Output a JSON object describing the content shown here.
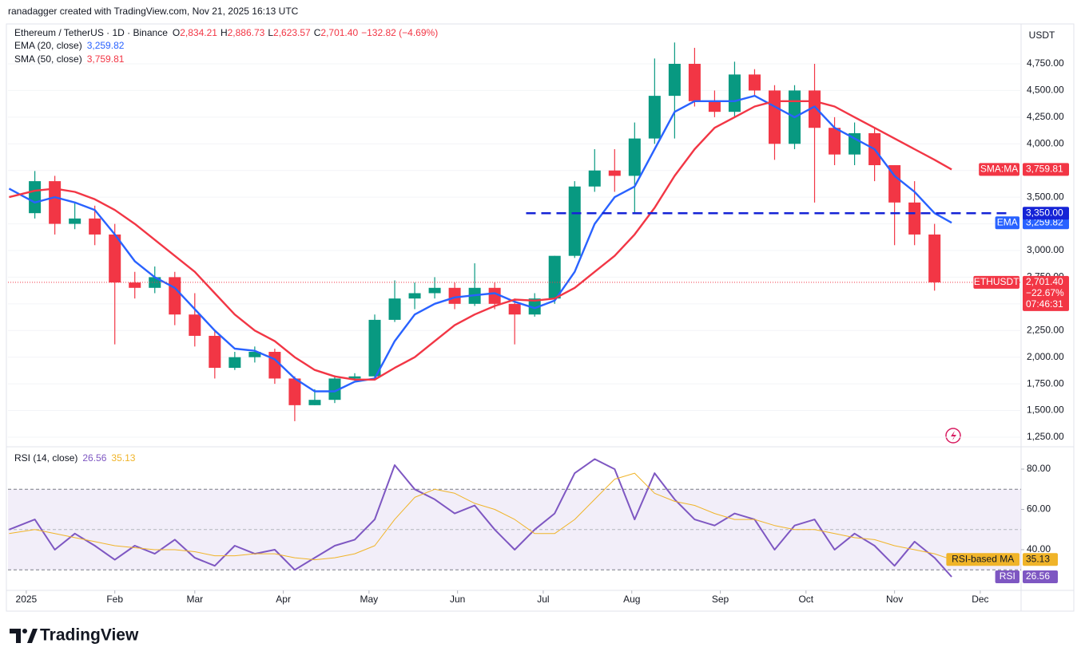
{
  "header": {
    "attribution": "ranadagger created with TradingView.com, Nov 21, 2025 16:13 UTC",
    "currency": "USDT"
  },
  "chart_data": [
    {
      "type": "candlestick",
      "title": "Ethereum / TetherUS · 1D · Binance",
      "ohlc_legend": [
        {
          "key": "O",
          "value": "2,834.21"
        },
        {
          "key": "H",
          "value": "2,886.73"
        },
        {
          "key": "L",
          "value": "2,623.57"
        },
        {
          "key": "C",
          "value": "2,701.40"
        }
      ],
      "change": "−132.82 (−4.69%)",
      "symbol": "ETHUSDT",
      "last_price": 2701.4,
      "last_price_label": "2,701.40",
      "last_change": "−22.67%",
      "countdown": "07:46:31",
      "up_color": "#089981",
      "down_color": "#f23645",
      "candles": {
        "x": [
          3,
          10,
          17,
          24,
          31,
          38,
          45,
          52,
          59,
          66,
          73,
          80,
          87,
          94,
          101,
          108,
          115,
          122,
          129,
          136,
          143,
          150,
          157,
          164,
          171,
          178,
          185,
          192,
          199,
          206,
          213,
          220,
          227,
          234,
          241,
          248,
          255,
          262,
          269,
          276,
          283,
          290,
          297,
          304,
          311,
          318
        ],
        "open": [
          3350,
          3650,
          3250,
          3300,
          3150,
          2700,
          2650,
          2750,
          2400,
          2200,
          1900,
          2000,
          2050,
          1800,
          1550,
          1600,
          1800,
          1820,
          2350,
          2550,
          2600,
          2650,
          2500,
          2650,
          2500,
          2400,
          2550,
          2950,
          3600,
          3750,
          3700,
          4050,
          4450,
          4750,
          4400,
          4300,
          4650,
          4500,
          4000,
          4500,
          4150,
          3900,
          4100,
          3800,
          3450,
          3150
        ],
        "high": [
          3745,
          3700,
          3450,
          3420,
          3250,
          2800,
          2850,
          2800,
          2600,
          2250,
          2050,
          2100,
          2080,
          1820,
          1700,
          1830,
          1850,
          2400,
          2720,
          2700,
          2750,
          2700,
          2880,
          2700,
          2550,
          2600,
          2950,
          3650,
          3950,
          3950,
          4200,
          4800,
          4950,
          4900,
          4500,
          4770,
          4700,
          4550,
          4550,
          4750,
          4250,
          4200,
          4150,
          3800,
          3650,
          3250
        ],
        "low": [
          3300,
          3150,
          3200,
          3050,
          2120,
          2550,
          2600,
          2300,
          2100,
          1800,
          1880,
          1950,
          1750,
          1400,
          1550,
          1570,
          1780,
          1790,
          2330,
          2450,
          2550,
          2450,
          2480,
          2450,
          2120,
          2380,
          2500,
          2930,
          3550,
          3550,
          3350,
          4000,
          4050,
          4350,
          4250,
          4250,
          4450,
          3850,
          3950,
          3450,
          3800,
          3800,
          3650,
          3050,
          3050,
          2623.57
        ],
        "close": [
          3650,
          3250,
          3300,
          3150,
          2700,
          2650,
          2750,
          2400,
          2200,
          1900,
          2000,
          2050,
          1800,
          1550,
          1600,
          1800,
          1820,
          2350,
          2550,
          2600,
          2650,
          2500,
          2650,
          2500,
          2400,
          2550,
          2950,
          3600,
          3750,
          3700,
          4050,
          4450,
          4750,
          4400,
          4300,
          4650,
          4500,
          4000,
          4500,
          4150,
          3900,
          4100,
          3800,
          3450,
          3150,
          2701.4
        ]
      },
      "series": [
        {
          "name": "EMA (20, close)",
          "tag": "EMA",
          "last_label": "3,259.82",
          "color": "#2962ff",
          "x": [
            -6,
            3,
            10,
            17,
            24,
            31,
            38,
            45,
            52,
            59,
            66,
            73,
            80,
            87,
            94,
            101,
            108,
            115,
            122,
            129,
            136,
            143,
            150,
            157,
            164,
            171,
            178,
            185,
            192,
            199,
            206,
            213,
            220,
            227,
            234,
            241,
            248,
            255,
            262,
            269,
            276,
            283,
            290,
            297,
            304,
            311,
            318,
            324
          ],
          "values": [
            3580,
            3450,
            3500,
            3450,
            3380,
            3150,
            2900,
            2750,
            2650,
            2450,
            2250,
            2080,
            2060,
            1980,
            1800,
            1680,
            1680,
            1770,
            1800,
            2150,
            2400,
            2500,
            2560,
            2580,
            2600,
            2520,
            2460,
            2530,
            2800,
            3250,
            3500,
            3600,
            3950,
            4300,
            4400,
            4400,
            4400,
            4450,
            4350,
            4250,
            4350,
            4150,
            4050,
            3950,
            3700,
            3550,
            3350,
            3259.82
          ]
        },
        {
          "name": "SMA (50, close)",
          "tag": "SMA:MA",
          "last_label": "3,759.81",
          "color": "#f23645",
          "x": [
            -6,
            3,
            10,
            17,
            24,
            31,
            38,
            45,
            52,
            59,
            66,
            73,
            80,
            87,
            94,
            101,
            108,
            115,
            122,
            129,
            136,
            143,
            150,
            157,
            164,
            171,
            178,
            185,
            192,
            199,
            206,
            213,
            220,
            227,
            234,
            241,
            248,
            255,
            262,
            269,
            276,
            283,
            290,
            297,
            304,
            311,
            318,
            324
          ],
          "values": [
            3500,
            3560,
            3580,
            3550,
            3480,
            3380,
            3250,
            3100,
            2950,
            2800,
            2600,
            2400,
            2250,
            2150,
            2000,
            1880,
            1820,
            1790,
            1790,
            1900,
            2000,
            2150,
            2300,
            2400,
            2480,
            2540,
            2530,
            2550,
            2650,
            2800,
            2950,
            3150,
            3400,
            3700,
            3950,
            4150,
            4250,
            4350,
            4400,
            4400,
            4400,
            4350,
            4250,
            4150,
            4050,
            3950,
            3850,
            3759.81
          ]
        }
      ],
      "level": {
        "value": 3350,
        "label": "3,350.00",
        "x": [
          175,
          345
        ],
        "color": "#1523d6"
      },
      "xlim": [
        -6.4,
        348.3
      ],
      "ylim": [
        1175,
        5124
      ],
      "yticks": [
        {
          "value": 1250,
          "label": "1,250.00"
        },
        {
          "value": 1500,
          "label": "1,500.00"
        },
        {
          "value": 1750,
          "label": "1,750.00"
        },
        {
          "value": 2000,
          "label": "2,000.00"
        },
        {
          "value": 2250,
          "label": "2,250.00"
        },
        {
          "value": 2500,
          "label": "2,500.00"
        },
        {
          "value": 2750,
          "label": "2,750.00"
        },
        {
          "value": 3000,
          "label": "3,000.00"
        },
        {
          "value": 3250,
          "label": "3,250.00"
        },
        {
          "value": 3500,
          "label": "3,500.00"
        },
        {
          "value": 3750,
          "label": "3,750.00"
        },
        {
          "value": 4000,
          "label": "4,000.00"
        },
        {
          "value": 4250,
          "label": "4,250.00"
        },
        {
          "value": 4500,
          "label": "4,500.00"
        },
        {
          "value": 4750,
          "label": "4,750.00"
        }
      ]
    },
    {
      "type": "line",
      "title": "RSI (14, close)",
      "series": [
        {
          "name": "RSI",
          "last_label": "26.56",
          "color": "#7e57c2",
          "x": [
            -6,
            3,
            10,
            17,
            24,
            31,
            38,
            45,
            52,
            59,
            66,
            73,
            80,
            87,
            94,
            101,
            108,
            115,
            122,
            129,
            136,
            143,
            150,
            157,
            164,
            171,
            178,
            185,
            192,
            199,
            206,
            213,
            220,
            227,
            234,
            241,
            248,
            255,
            262,
            269,
            276,
            283,
            290,
            297,
            304,
            311,
            318,
            324
          ],
          "values": [
            50,
            55,
            40,
            48,
            42,
            35,
            42,
            38,
            45,
            36,
            32,
            42,
            38,
            40,
            30,
            36,
            42,
            45,
            55,
            82,
            70,
            65,
            58,
            62,
            50,
            40,
            50,
            58,
            78,
            85,
            80,
            55,
            78,
            65,
            55,
            52,
            58,
            55,
            40,
            52,
            55,
            40,
            48,
            42,
            32,
            44,
            36,
            26.56
          ]
        },
        {
          "name": "RSI-based MA",
          "last_label": "35.13",
          "color": "#f0b429",
          "x": [
            -6,
            3,
            10,
            17,
            24,
            31,
            38,
            45,
            52,
            59,
            66,
            73,
            80,
            87,
            94,
            101,
            108,
            115,
            122,
            129,
            136,
            143,
            150,
            157,
            164,
            171,
            178,
            185,
            192,
            199,
            206,
            213,
            220,
            227,
            234,
            241,
            248,
            255,
            262,
            269,
            276,
            283,
            290,
            297,
            304,
            311,
            318,
            324
          ],
          "values": [
            48,
            50,
            48,
            46,
            44,
            42,
            41,
            40,
            40,
            39,
            37,
            37,
            38,
            38,
            36,
            35,
            36,
            38,
            42,
            55,
            66,
            70,
            68,
            63,
            60,
            55,
            48,
            48,
            55,
            65,
            75,
            78,
            68,
            64,
            62,
            58,
            55,
            55,
            52,
            50,
            50,
            48,
            46,
            45,
            42,
            40,
            38,
            35.13
          ]
        }
      ],
      "bands": [
        30,
        70
      ],
      "midline": 50,
      "xlim": [
        -6.4,
        348.3
      ],
      "ylim": [
        20.6,
        90.3
      ],
      "yticks": [
        {
          "value": 40,
          "label": "40.00"
        },
        {
          "value": 60,
          "label": "60.00"
        },
        {
          "value": 80,
          "label": "80.00"
        }
      ],
      "xticks": [
        {
          "value": 0,
          "label": "2025"
        },
        {
          "value": 31,
          "label": "Feb"
        },
        {
          "value": 59,
          "label": "Mar"
        },
        {
          "value": 90,
          "label": "Apr"
        },
        {
          "value": 120,
          "label": "May"
        },
        {
          "value": 151,
          "label": "Jun"
        },
        {
          "value": 181,
          "label": "Jul"
        },
        {
          "value": 212,
          "label": "Aug"
        },
        {
          "value": 243,
          "label": "Sep"
        },
        {
          "value": 273,
          "label": "Oct"
        },
        {
          "value": 304,
          "label": "Nov"
        },
        {
          "value": 334,
          "label": "Dec"
        }
      ]
    }
  ],
  "footer": {
    "brand": "TradingView"
  }
}
